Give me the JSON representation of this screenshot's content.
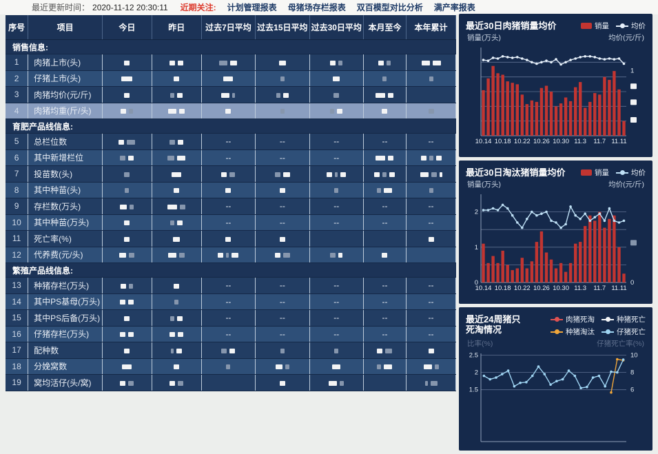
{
  "topbar": {
    "updated_label": "最近更新时间：",
    "updated_time": "2020-11-12 20:30:11",
    "focus_label": "近期关注:",
    "menu": [
      "计划管理报表",
      "母猪场存栏报表",
      "双百模型对比分析",
      "满产率报表"
    ]
  },
  "table": {
    "columns": [
      "序号",
      "项目",
      "今日",
      "昨日",
      "过去7日平均",
      "过去15日平均",
      "过去30日平均",
      "本月至今",
      "本年累计"
    ],
    "rows": [
      {
        "type": "section",
        "label": "销售信息:"
      },
      {
        "type": "data",
        "num": "1",
        "item": "肉猪上市(头)",
        "cells": [
          [
            8
          ],
          [
            8,
            8
          ],
          [
            -12,
            10
          ],
          [
            10
          ],
          [
            8,
            -6
          ],
          [
            8,
            -6
          ],
          [
            12,
            12
          ]
        ]
      },
      {
        "type": "data",
        "num": "2",
        "item": "仔猪上市(头)",
        "cells": [
          [
            16
          ],
          [
            8
          ],
          [
            14
          ],
          [
            -6
          ],
          [
            10
          ],
          [
            -6
          ],
          [
            -6
          ]
        ]
      },
      {
        "type": "data",
        "num": "3",
        "item": "肉猪均价(元/斤)",
        "cells": [
          [
            8
          ],
          [
            -6,
            8
          ],
          [
            12,
            -4
          ],
          [
            -6,
            8
          ],
          [
            -8
          ],
          [
            14,
            8
          ],
          []
        ]
      },
      {
        "type": "data",
        "num": "4",
        "item": "肉猪均重(斤/头)",
        "highlight": true,
        "cells": [
          [
            8,
            -6
          ],
          [
            12,
            8
          ],
          [
            8
          ],
          [
            -6
          ],
          [
            -6,
            8
          ],
          [
            8
          ],
          [
            -8
          ]
        ]
      },
      {
        "type": "section",
        "label": "育肥产品线信息:"
      },
      {
        "type": "data",
        "num": "5",
        "item": "总栏位数",
        "cells": [
          [
            8,
            -12
          ],
          [
            -8,
            8
          ],
          "--",
          "--",
          "--",
          "--",
          "--"
        ]
      },
      {
        "type": "data",
        "num": "6",
        "item": "其中新增栏位",
        "cells": [
          [
            -8,
            8
          ],
          [
            -10,
            12
          ],
          "--",
          "--",
          "--",
          [
            14,
            8
          ],
          [
            8,
            -6,
            8
          ]
        ]
      },
      {
        "type": "data",
        "num": "7",
        "item": "投苗数(头)",
        "cells": [
          [
            -8
          ],
          [
            14
          ],
          [
            8,
            -8
          ],
          [
            -8,
            10
          ],
          [
            8,
            -4,
            8
          ],
          [
            8,
            -6,
            8
          ],
          [
            12,
            -8,
            4
          ]
        ]
      },
      {
        "type": "data",
        "num": "8",
        "item": "其中种苗(头)",
        "cells": [
          [
            -6
          ],
          [
            8
          ],
          [
            8
          ],
          [
            8
          ],
          [
            -6
          ],
          [
            -6,
            12
          ],
          [
            -6
          ]
        ]
      },
      {
        "type": "data",
        "num": "9",
        "item": "存栏数(万头)",
        "cells": [
          [
            10,
            -6
          ],
          [
            14,
            -8
          ],
          "--",
          "--",
          "--",
          "--",
          "--"
        ]
      },
      {
        "type": "data",
        "num": "10",
        "item": "其中种苗(万头)",
        "cells": [
          [
            8
          ],
          [
            -6,
            8
          ],
          "--",
          "--",
          "--",
          "--",
          "--"
        ]
      },
      {
        "type": "data",
        "num": "11",
        "item": "死亡率(%)",
        "cells": [
          [
            8
          ],
          [
            10
          ],
          [
            8
          ],
          [
            8
          ],
          [],
          [],
          [
            8
          ]
        ]
      },
      {
        "type": "data",
        "num": "12",
        "item": "代养费(元/头)",
        "cells": [
          [
            10,
            -8
          ],
          [
            12,
            -8
          ],
          [
            8,
            -4,
            10
          ],
          [
            8,
            -10
          ],
          [
            -8,
            6
          ],
          [
            8
          ],
          []
        ]
      },
      {
        "type": "section",
        "label": "繁殖产品线信息:"
      },
      {
        "type": "data",
        "num": "13",
        "item": "种猪存栏(万头)",
        "cells": [
          [
            8,
            -6
          ],
          [
            8
          ],
          "--",
          "--",
          "--",
          "--",
          "--"
        ]
      },
      {
        "type": "data",
        "num": "14",
        "item": "其中PS基母(万头)",
        "cells": [
          [
            8,
            8
          ],
          [
            -6
          ],
          "--",
          "--",
          "--",
          "--",
          "--"
        ]
      },
      {
        "type": "data",
        "num": "15",
        "item": "其中PS后备(万头)",
        "cells": [
          [
            8
          ],
          [
            -6,
            8
          ],
          "--",
          "--",
          "--",
          "--",
          "--"
        ]
      },
      {
        "type": "data",
        "num": "16",
        "item": "仔猪存栏(万头)",
        "cells": [
          [
            8,
            8
          ],
          [
            8,
            8
          ],
          "--",
          "--",
          "--",
          "--",
          "--"
        ]
      },
      {
        "type": "data",
        "num": "17",
        "item": "配种数",
        "cells": [
          [
            8
          ],
          [
            -4,
            8
          ],
          [
            -8,
            8
          ],
          [
            -6
          ],
          [
            -6
          ],
          [
            8,
            -10
          ],
          [
            8
          ]
        ]
      },
      {
        "type": "data",
        "num": "18",
        "item": "分娩窝数",
        "cells": [
          [
            14
          ],
          [
            8
          ],
          [
            -6
          ],
          [
            10,
            -6
          ],
          [
            12
          ],
          [
            -6,
            12
          ],
          [
            12,
            -6
          ]
        ]
      },
      {
        "type": "data",
        "num": "19",
        "item": "窝均活仔(头/窝)",
        "cells": [
          [
            8,
            -8
          ],
          [
            8,
            -8
          ],
          [],
          [
            8
          ],
          [
            12,
            -6
          ],
          [],
          [
            -4,
            -10
          ]
        ]
      }
    ]
  },
  "chart_data": [
    {
      "type": "bar",
      "title": "最近30日肉猪销量均价",
      "left_axis_label": "销量(万头)",
      "right_axis_label": "均价(元/斤)",
      "legend": [
        {
          "label": "销量",
          "kind": "bar",
          "color": "#c23531"
        },
        {
          "label": "均价",
          "kind": "line",
          "color": "#e6f0fa"
        }
      ],
      "categories": [
        "10.14",
        "10.15",
        "10.16",
        "10.17",
        "10.18",
        "10.19",
        "10.20",
        "10.21",
        "10.22",
        "10.23",
        "10.24",
        "10.25",
        "10.26",
        "10.27",
        "10.28",
        "10.29",
        "10.30",
        "10.31",
        "11.1",
        "11.2",
        "11.3",
        "11.4",
        "11.5",
        "11.6",
        "11.7",
        "11.8",
        "11.9",
        "11.10",
        "11.11",
        "11.12"
      ],
      "x_tick_labels": [
        "10.14",
        "10.18",
        "10.22",
        "10.26",
        "10.30",
        "11.3",
        "11.7",
        "11.11"
      ],
      "x_tick_idx": [
        0,
        4,
        8,
        12,
        16,
        20,
        24,
        28
      ],
      "bars": [
        0.62,
        0.78,
        0.95,
        0.85,
        0.83,
        0.74,
        0.72,
        0.7,
        0.56,
        0.43,
        0.48,
        0.46,
        0.65,
        0.68,
        0.6,
        0.4,
        0.44,
        0.52,
        0.47,
        0.66,
        0.73,
        0.38,
        0.46,
        0.58,
        0.56,
        0.8,
        0.76,
        0.88,
        0.63,
        0.2
      ],
      "bar_color": "#c23531",
      "lines": [
        {
          "name": "均价",
          "color": "#e6f0fa",
          "values": [
            1.03,
            1.02,
            1.06,
            1.05,
            1.08,
            1.07,
            1.06,
            1.07,
            1.05,
            1.03,
            1.0,
            0.98,
            1.0,
            1.02,
            1.0,
            1.04,
            0.97,
            1.0,
            1.03,
            1.05,
            1.07,
            1.08,
            1.08,
            1.07,
            1.05,
            1.04,
            1.05,
            1.04,
            1.05,
            0.98
          ]
        }
      ],
      "ylim": [
        0,
        1.2
      ],
      "grid": [
        0.2,
        0.4,
        0.6,
        0.8,
        1.0
      ],
      "left_marks": [],
      "right_marks": [
        {
          "frac": 0.74,
          "text": "1"
        },
        {
          "frac": 0.56,
          "block": true
        },
        {
          "frac": 0.38,
          "block": true
        },
        {
          "frac": 0.18,
          "block": true
        }
      ]
    },
    {
      "type": "bar",
      "title": "最近30日淘汰猪销量均价",
      "left_axis_label": "销量(万头)",
      "right_axis_label": "均价(元/斤)",
      "legend": [
        {
          "label": "销量",
          "kind": "bar",
          "color": "#c23531"
        },
        {
          "label": "均价",
          "kind": "line",
          "color": "#bfe0f5"
        }
      ],
      "categories": [
        "10.14",
        "10.15",
        "10.16",
        "10.17",
        "10.18",
        "10.19",
        "10.20",
        "10.21",
        "10.22",
        "10.23",
        "10.24",
        "10.25",
        "10.26",
        "10.27",
        "10.28",
        "10.29",
        "10.30",
        "10.31",
        "11.1",
        "11.2",
        "11.3",
        "11.4",
        "11.5",
        "11.6",
        "11.7",
        "11.8",
        "11.9",
        "11.10",
        "11.11",
        "11.12"
      ],
      "x_tick_labels": [
        "10.14",
        "10.18",
        "10.22",
        "10.26",
        "10.30",
        "11.3",
        "11.7",
        "11.11"
      ],
      "x_tick_idx": [
        0,
        4,
        8,
        12,
        16,
        20,
        24,
        28
      ],
      "bars": [
        1.1,
        0.55,
        0.75,
        0.55,
        0.9,
        0.5,
        0.35,
        0.4,
        0.7,
        0.4,
        0.6,
        1.15,
        1.45,
        0.85,
        0.65,
        0.4,
        0.55,
        0.3,
        0.55,
        1.1,
        1.15,
        1.6,
        1.9,
        1.75,
        2.0,
        1.55,
        1.8,
        1.9,
        1.0,
        0.25
      ],
      "bar_color": "#c23531",
      "lines": [
        {
          "name": "均价",
          "color": "#bfe0f5",
          "values": [
            2.05,
            2.05,
            2.1,
            2.05,
            2.2,
            2.1,
            1.9,
            1.7,
            1.55,
            1.8,
            2.0,
            1.9,
            1.95,
            2.0,
            1.75,
            1.7,
            1.55,
            1.65,
            2.15,
            1.9,
            1.8,
            1.95,
            1.75,
            1.85,
            1.95,
            1.75,
            2.1,
            1.75,
            1.7,
            1.75
          ]
        }
      ],
      "ylim": [
        0,
        2.5
      ],
      "grid": [
        0.5,
        1.0,
        1.5,
        2.0
      ],
      "left_marks": [
        {
          "v": 0,
          "text": "0"
        },
        {
          "v": 1,
          "text": "1"
        },
        {
          "v": 2,
          "text": "2"
        }
      ],
      "right_marks": [
        {
          "frac": 0.0,
          "text": "0"
        },
        {
          "frac": 0.45,
          "block": true,
          "gray": true
        }
      ]
    },
    {
      "type": "line",
      "title": "最近24周猪只死淘情况",
      "left_axis_label": "比率(%)",
      "right_axis_label": "仔猪死亡率(%)",
      "legend": [
        {
          "label": "肉猪死淘",
          "kind": "line",
          "color": "#e05252"
        },
        {
          "label": "种猪死亡",
          "kind": "line",
          "color": "#f4f6f8"
        },
        {
          "label": "种猪淘汰",
          "kind": "line",
          "color": "#f0a63a"
        },
        {
          "label": "仔猪死亡",
          "kind": "line",
          "color": "#9fd4f2"
        }
      ],
      "categories": [],
      "x_tick_labels": [],
      "x_tick_idx": [],
      "lines": [
        {
          "name": "种猪淘汰",
          "color": "#f0a63a",
          "values": [
            null,
            null,
            null,
            null,
            null,
            null,
            null,
            null,
            null,
            null,
            null,
            null,
            null,
            null,
            null,
            null,
            null,
            null,
            null,
            null,
            null,
            1.42,
            2.38,
            2.35
          ]
        },
        {
          "name": "仔猪死亡",
          "color": "#9fd4f2",
          "values": [
            1.9,
            1.8,
            1.85,
            1.95,
            2.05,
            1.6,
            1.7,
            1.72,
            1.9,
            2.17,
            1.95,
            1.65,
            1.75,
            1.8,
            2.05,
            1.9,
            1.55,
            1.58,
            1.85,
            1.9,
            1.6,
            2.02,
            2.0,
            2.37
          ]
        }
      ],
      "ylim": [
        0,
        2.55
      ],
      "grid": [
        1.5,
        2.0,
        2.5
      ],
      "left_marks": [
        {
          "v": 1.5,
          "text": "1.5"
        },
        {
          "v": 2.0,
          "text": "2"
        },
        {
          "v": 2.5,
          "text": "2.5"
        }
      ],
      "right_marks": [
        {
          "v": 1.5,
          "text": "6"
        },
        {
          "v": 2.0,
          "text": "8"
        },
        {
          "v": 2.5,
          "text": "10"
        }
      ]
    }
  ]
}
